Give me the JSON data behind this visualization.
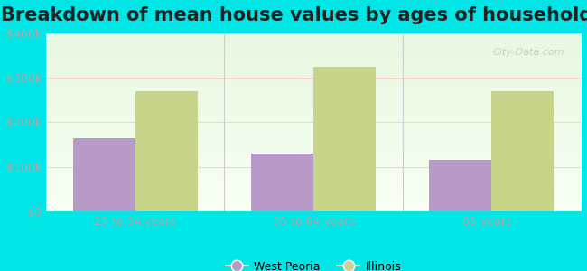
{
  "title": "Breakdown of mean house values by ages of householders",
  "categories": [
    "25 to 34 years",
    "35 to 64 years",
    "65 years+"
  ],
  "west_peoria": [
    165000,
    130000,
    115000
  ],
  "illinois": [
    270000,
    325000,
    270000
  ],
  "ylim": [
    0,
    400000
  ],
  "yticks": [
    0,
    100000,
    200000,
    300000,
    400000
  ],
  "ytick_labels": [
    "$0",
    "$100k",
    "$200k",
    "$300k",
    "$400k"
  ],
  "bar_color_wp": "#b89ac8",
  "bar_color_il": "#c8d48a",
  "background_color": "#00e5e5",
  "legend_wp": "West Peoria",
  "legend_il": "Illinois",
  "title_fontsize": 15,
  "bar_width": 0.35,
  "grid_color": "#ffcccc",
  "tick_color": "#aaaaaa",
  "watermark": "City-Data.com"
}
